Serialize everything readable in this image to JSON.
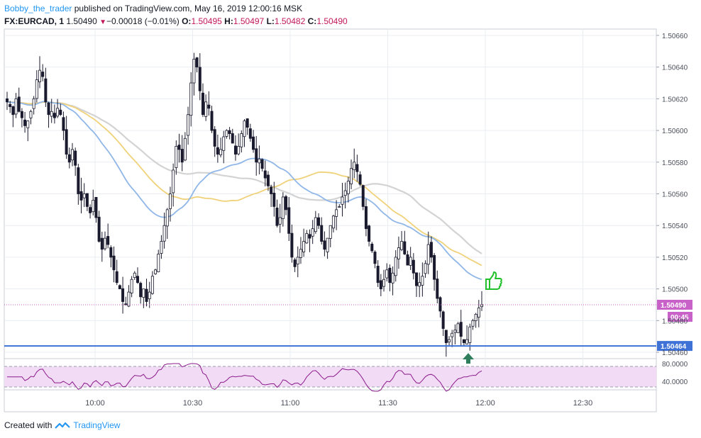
{
  "header": {
    "author": "Bobby_the_trader",
    "published_text": "published on TradingView.com, May 16, 2019 12:00:16 MSK",
    "symbol": "FX:EURCAD, 1",
    "last": "1.50490",
    "change": "−0.00018 (−0.01%)",
    "o_label": "O:",
    "o": "1.50495",
    "h_label": "H:",
    "h": "1.50497",
    "l_label": "L:",
    "l": "1.50482",
    "c_label": "C:",
    "c": "1.50490"
  },
  "footer": {
    "created_with": "Created with",
    "brand": "TradingView",
    "logo_icon": "tradingview-logo-icon"
  },
  "colors": {
    "up": "#ffffff",
    "down": "#1a1a2e",
    "grid": "#e9edf2",
    "ema_blue": "#90b7e8",
    "ema_yellow": "#f0d27a",
    "ema_gray": "#d3d3d3",
    "support": "#3f72d6",
    "price_tag": "#c862c8",
    "rsi_line": "#8b1a8b",
    "rsi_band": "#f2dcf5"
  },
  "chart_data": {
    "type": "candlestick",
    "price_axis_ticks": [
      "1.50660",
      "1.50640",
      "1.50620",
      "1.50600",
      "1.50580",
      "1.50560",
      "1.50540",
      "1.50520",
      "1.50500",
      "1.50480",
      "1.50460"
    ],
    "ylim": [
      1.50456,
      1.50664
    ],
    "time_axis_ticks": [
      "10:00",
      "10:30",
      "11:00",
      "11:30",
      "12:00",
      "12:30"
    ],
    "last_price": 1.5049,
    "last_price_label": "1.50490",
    "countdown_label": "00:45",
    "support_level": 1.50464,
    "support_label": "1.50464",
    "annotations": [
      "thumbs-up-icon",
      "arrow-up-icon"
    ],
    "close_series": [
      1.50618,
      1.50615,
      1.5061,
      1.5062,
      1.50612,
      1.50608,
      1.50603,
      1.50606,
      1.50612,
      1.5062,
      1.50632,
      1.50638,
      1.50634,
      1.50618,
      1.5061,
      1.50612,
      1.50608,
      1.50614,
      1.5061,
      1.506,
      1.50585,
      1.5058,
      1.50588,
      1.50578,
      1.5056,
      1.50556,
      1.5056,
      1.50552,
      1.50548,
      1.50556,
      1.50545,
      1.5053,
      1.50525,
      1.50532,
      1.50528,
      1.5052,
      1.50512,
      1.50504,
      1.505,
      1.50492,
      1.5049,
      1.50498,
      1.50506,
      1.5051,
      1.50504,
      1.50495,
      1.505,
      1.50492,
      1.50498,
      1.50508,
      1.50512,
      1.50522,
      1.5053,
      1.5054,
      1.5055,
      1.5056,
      1.50575,
      1.5059,
      1.50588,
      1.5058,
      1.50595,
      1.5061,
      1.5063,
      1.50645,
      1.5064,
      1.50625,
      1.5061,
      1.50618,
      1.50614,
      1.506,
      1.5059,
      1.50585,
      1.50588,
      1.50596,
      1.506,
      1.50598,
      1.50592,
      1.50585,
      1.5059,
      1.50598,
      1.50606,
      1.50602,
      1.50595,
      1.50588,
      1.5058,
      1.50582,
      1.50576,
      1.5057,
      1.50565,
      1.5056,
      1.50552,
      1.5054,
      1.50545,
      1.50558,
      1.5055,
      1.50535,
      1.5052,
      1.50514,
      1.5052,
      1.50525,
      1.5053,
      1.50535,
      1.50532,
      1.50538,
      1.50545,
      1.5054,
      1.5053,
      1.50525,
      1.50532,
      1.5054,
      1.50546,
      1.5055,
      1.50552,
      1.50558,
      1.50562,
      1.50568,
      1.50576,
      1.5058,
      1.50574,
      1.50566,
      1.50552,
      1.50538,
      1.5053,
      1.50524,
      1.50516,
      1.50504,
      1.505,
      1.50506,
      1.50512,
      1.50504,
      1.5051,
      1.5052,
      1.50526,
      1.5053,
      1.50522,
      1.50515,
      1.5052,
      1.5051,
      1.50502,
      1.50504,
      1.50508,
      1.50516,
      1.50528,
      1.5052,
      1.50506,
      1.50494,
      1.50486,
      1.50475,
      1.50466,
      1.50468,
      1.50472,
      1.50474,
      1.50478,
      1.5047,
      1.50466,
      1.50468,
      1.50476,
      1.5048,
      1.50484,
      1.50488,
      1.5049
    ],
    "rsi_levels": [
      "80.0000",
      "40.0000"
    ]
  }
}
